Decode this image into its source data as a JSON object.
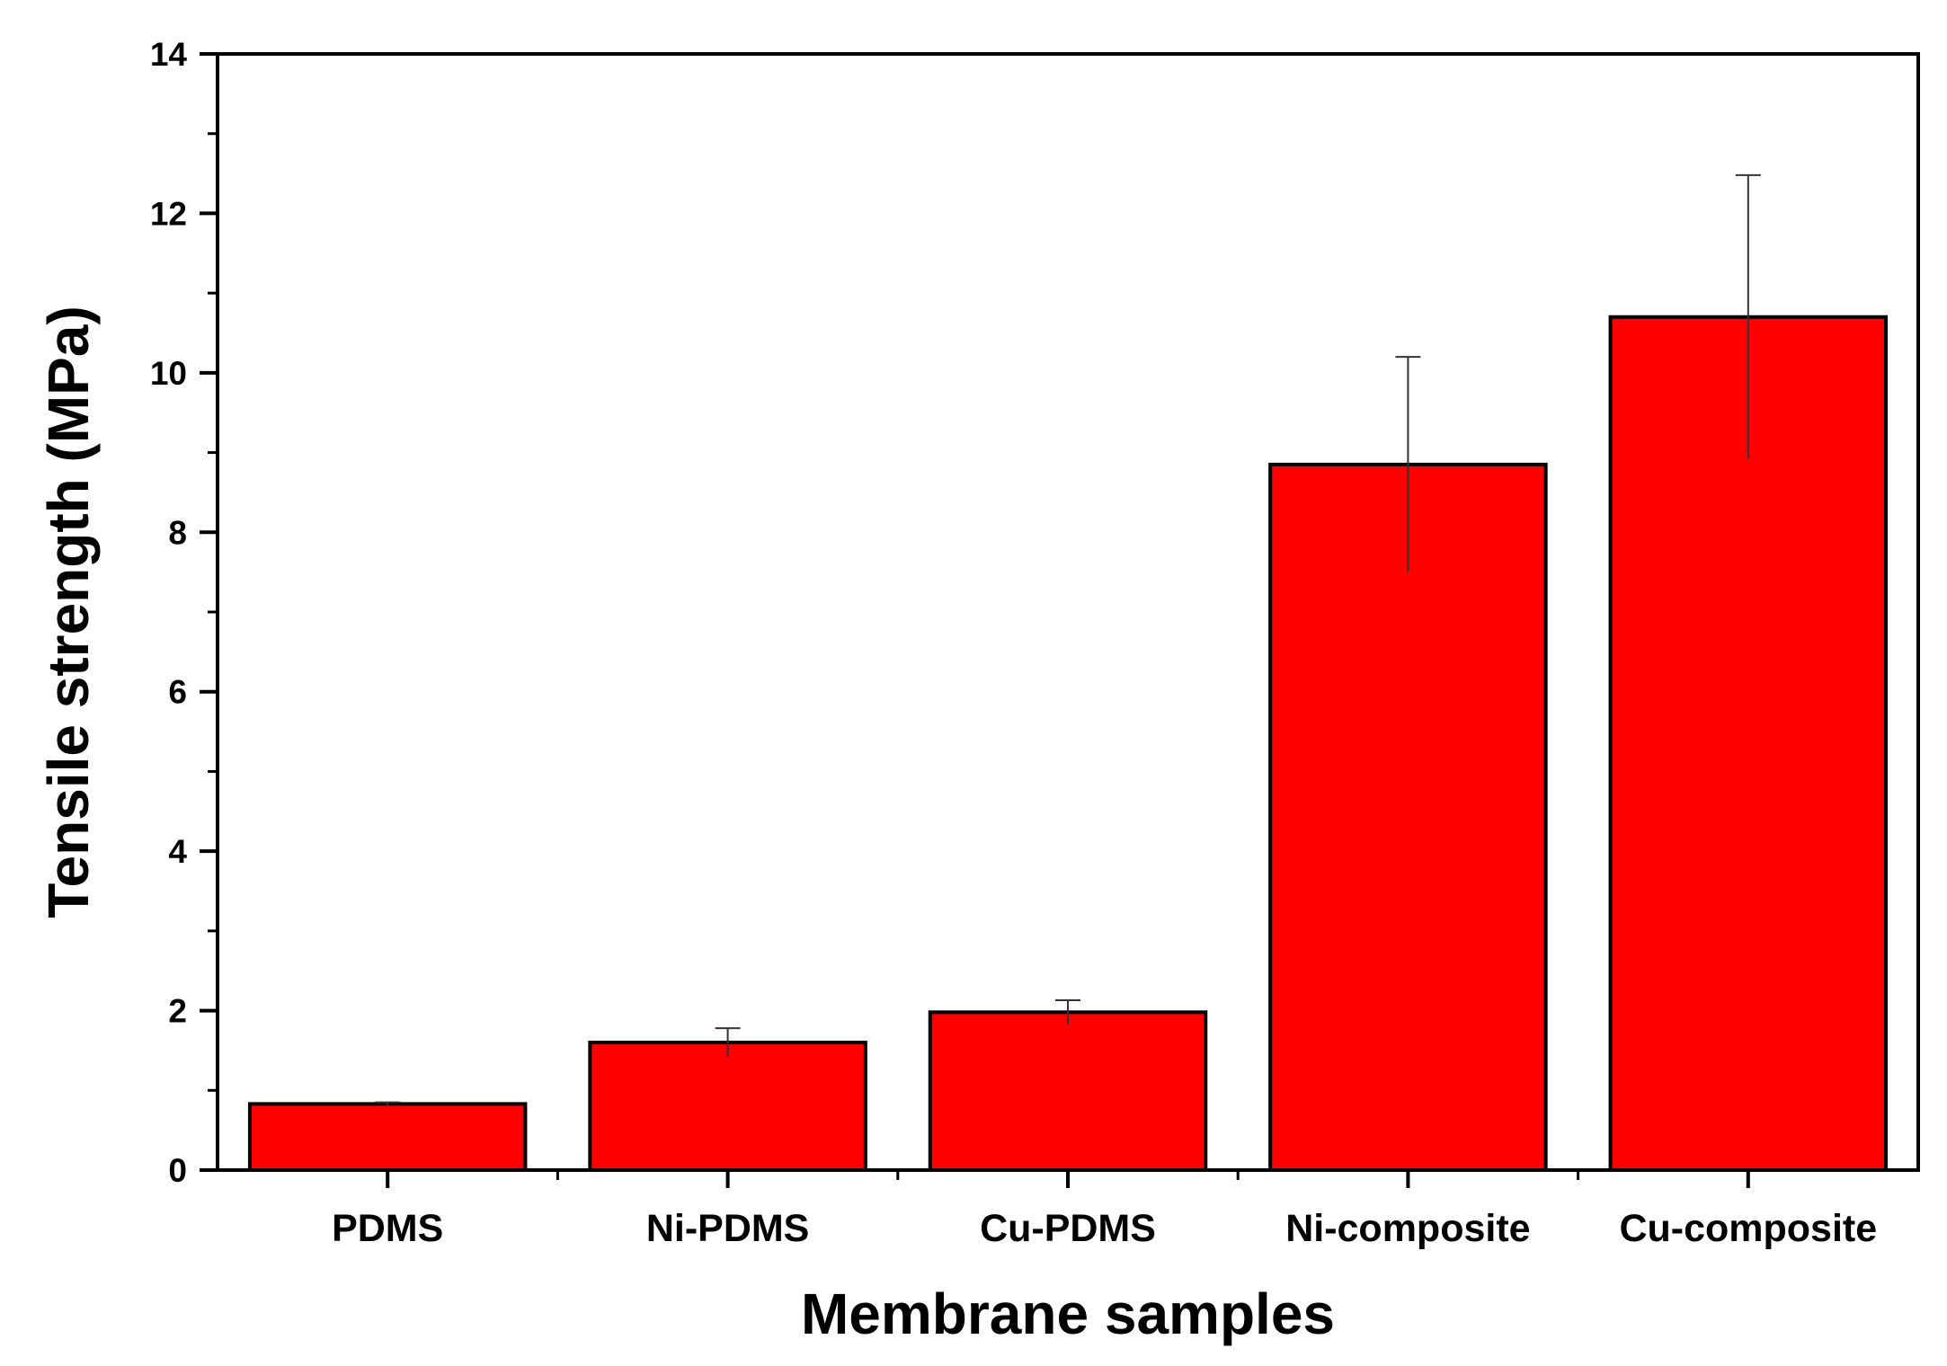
{
  "chart_data": {
    "type": "bar",
    "title": "",
    "xlabel": "Membrane samples",
    "ylabel": "Tensile strength (MPa)",
    "categories": [
      "PDMS",
      "Ni-PDMS",
      "Cu-PDMS",
      "Ni-composite",
      "Cu-composite"
    ],
    "values": [
      0.83,
      1.6,
      1.98,
      8.85,
      10.7
    ],
    "error": [
      0.02,
      0.18,
      0.15,
      1.35,
      1.78
    ],
    "ylim": [
      0,
      14
    ],
    "yticks": [
      0,
      2,
      4,
      6,
      8,
      10,
      12,
      14
    ],
    "ytick_labels": [
      "0",
      "2",
      "4",
      "6",
      "8",
      "10",
      "12",
      "14"
    ],
    "grid": false,
    "legend": "none",
    "bar_color": "#ff0000",
    "edge_color": "#000000"
  }
}
